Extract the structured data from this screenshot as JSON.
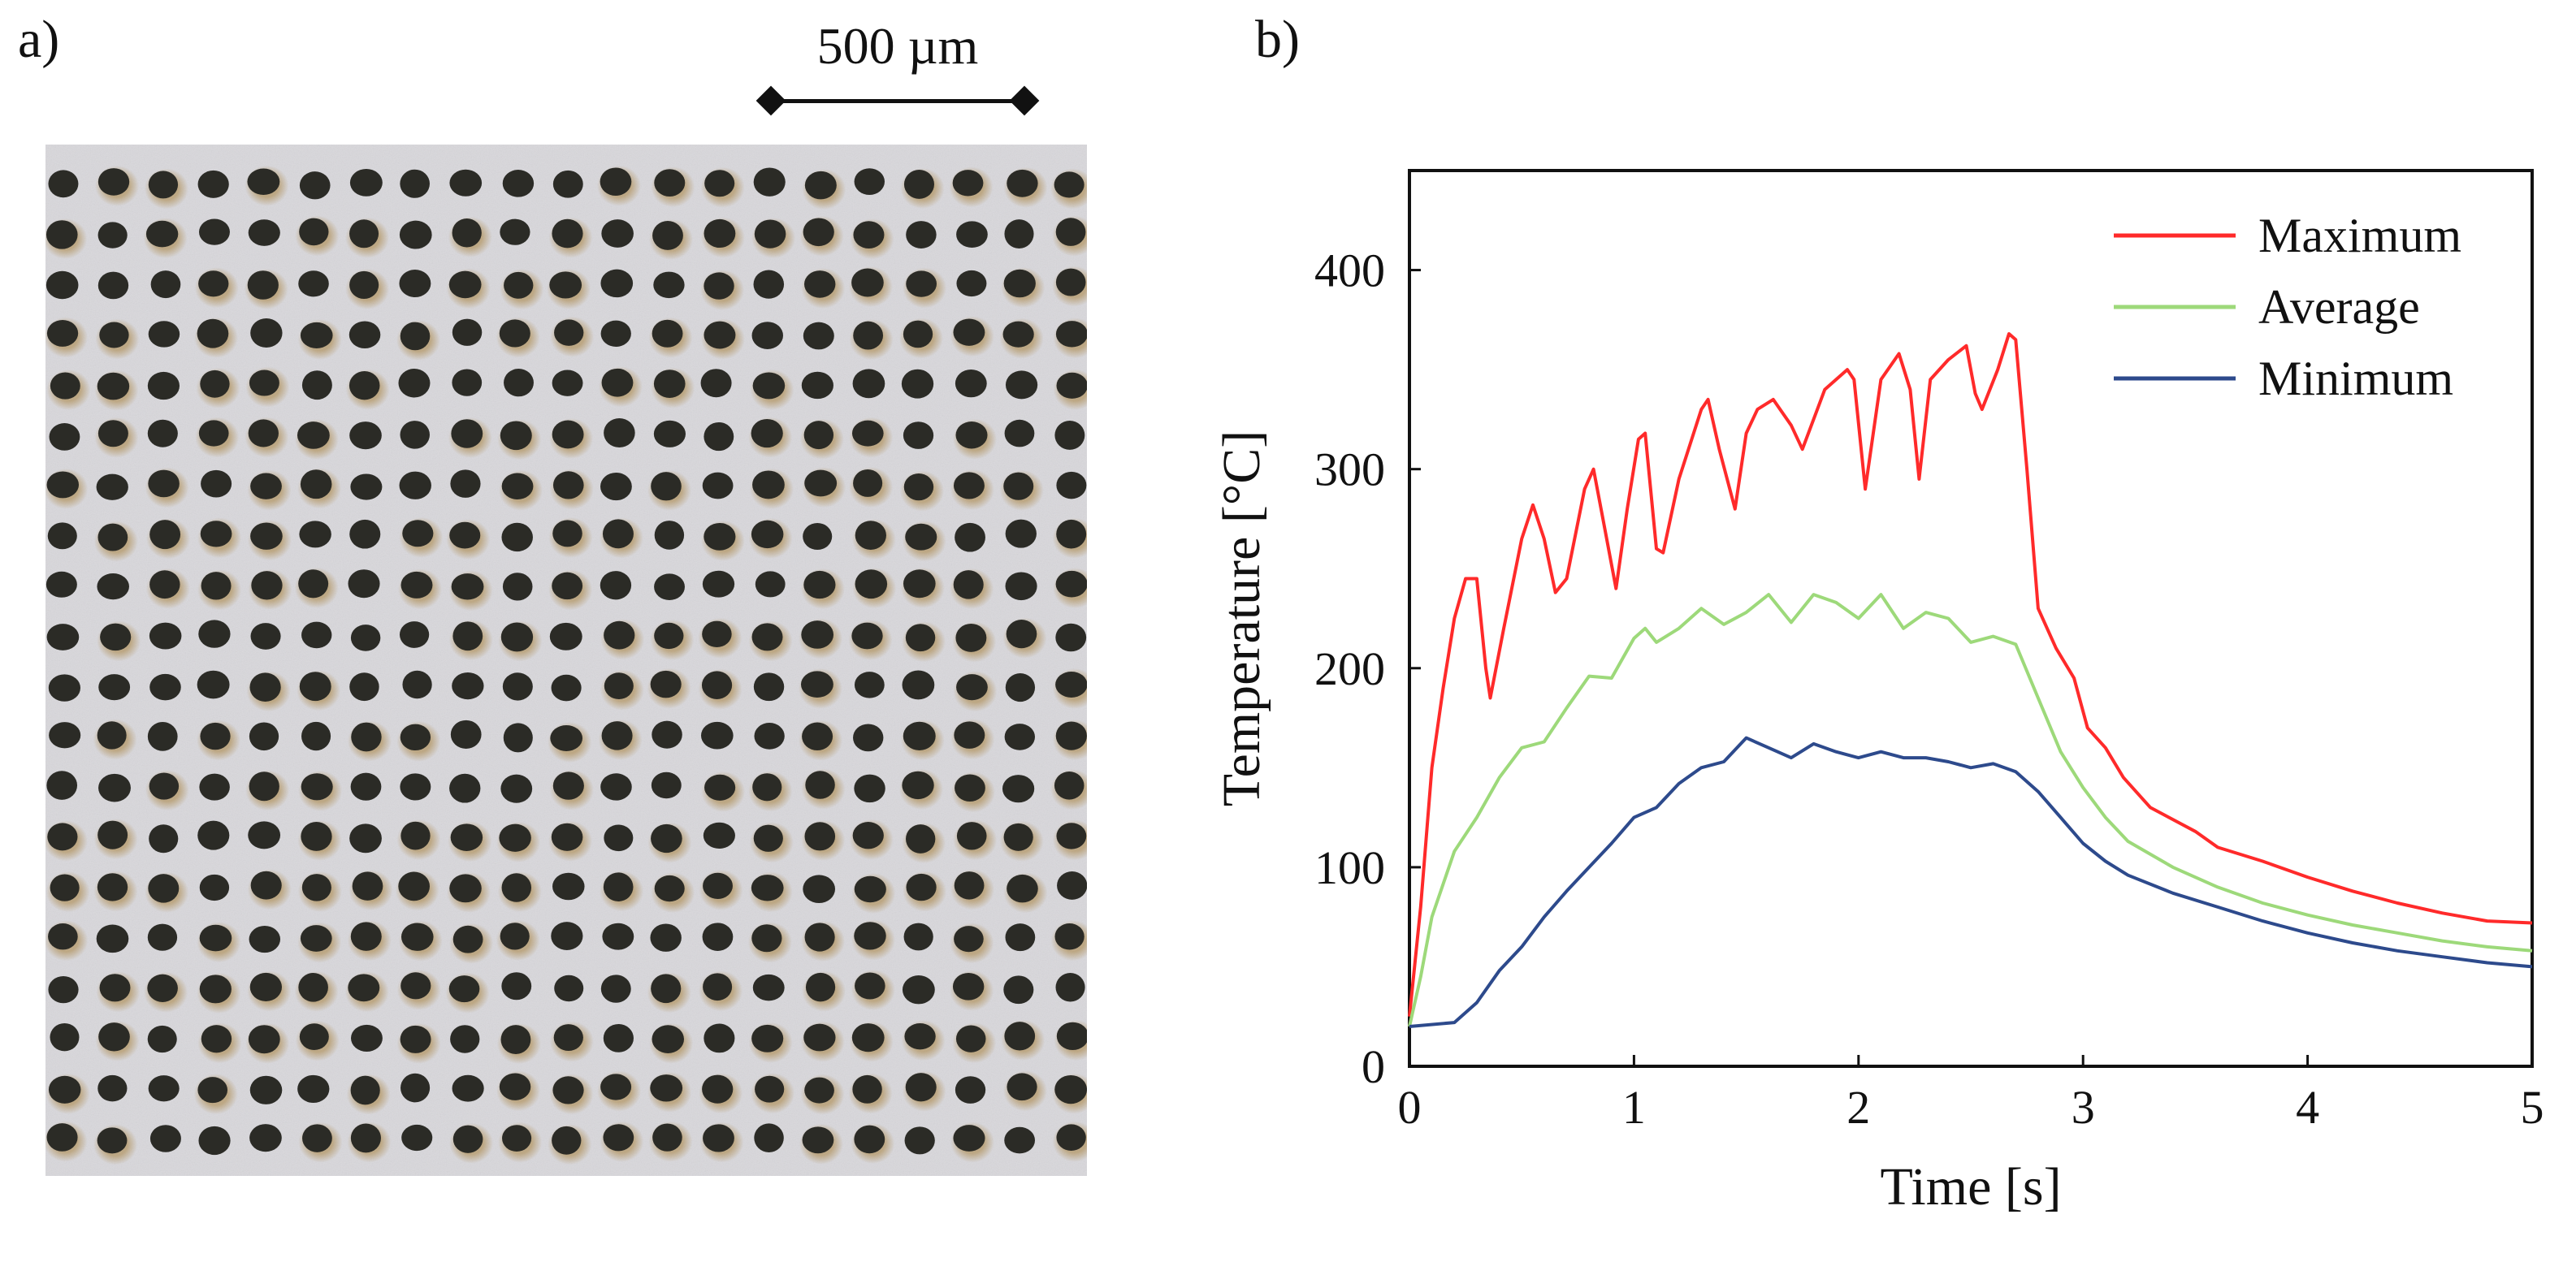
{
  "panels": {
    "a_label": "a)",
    "b_label": "b)"
  },
  "micrograph": {
    "scale_bar_label": "500 µm",
    "grid_rows": 20,
    "grid_cols": 21,
    "background_color": "#d9d8dc",
    "dot_color": "#2b2b26",
    "halo_color": "#a8823f"
  },
  "chart_data": {
    "type": "line",
    "title": "",
    "xlabel": "Time [s]",
    "ylabel": "Temperature [°C]",
    "xlim": [
      0,
      5
    ],
    "ylim": [
      0,
      450
    ],
    "xticks": [
      0,
      1,
      2,
      3,
      4,
      5
    ],
    "yticks": [
      0,
      100,
      200,
      300,
      400
    ],
    "grid": false,
    "legend_position": "top-right",
    "series": [
      {
        "name": "Maximum",
        "color": "#ff2a2a",
        "points": [
          [
            0,
            25
          ],
          [
            0.05,
            80
          ],
          [
            0.1,
            150
          ],
          [
            0.15,
            190
          ],
          [
            0.2,
            225
          ],
          [
            0.25,
            245
          ],
          [
            0.3,
            245
          ],
          [
            0.34,
            200
          ],
          [
            0.36,
            185
          ],
          [
            0.42,
            220
          ],
          [
            0.5,
            265
          ],
          [
            0.55,
            282
          ],
          [
            0.6,
            265
          ],
          [
            0.65,
            238
          ],
          [
            0.7,
            245
          ],
          [
            0.78,
            290
          ],
          [
            0.82,
            300
          ],
          [
            0.87,
            270
          ],
          [
            0.92,
            240
          ],
          [
            0.97,
            280
          ],
          [
            1.02,
            315
          ],
          [
            1.05,
            318
          ],
          [
            1.1,
            260
          ],
          [
            1.13,
            258
          ],
          [
            1.2,
            295
          ],
          [
            1.3,
            330
          ],
          [
            1.33,
            335
          ],
          [
            1.38,
            310
          ],
          [
            1.45,
            280
          ],
          [
            1.5,
            318
          ],
          [
            1.55,
            330
          ],
          [
            1.62,
            335
          ],
          [
            1.7,
            322
          ],
          [
            1.75,
            310
          ],
          [
            1.85,
            340
          ],
          [
            1.95,
            350
          ],
          [
            1.98,
            345
          ],
          [
            2.03,
            290
          ],
          [
            2.1,
            345
          ],
          [
            2.18,
            358
          ],
          [
            2.23,
            340
          ],
          [
            2.27,
            295
          ],
          [
            2.32,
            345
          ],
          [
            2.4,
            355
          ],
          [
            2.48,
            362
          ],
          [
            2.52,
            338
          ],
          [
            2.55,
            330
          ],
          [
            2.62,
            350
          ],
          [
            2.67,
            368
          ],
          [
            2.7,
            365
          ],
          [
            2.75,
            300
          ],
          [
            2.8,
            230
          ],
          [
            2.88,
            210
          ],
          [
            2.96,
            195
          ],
          [
            3.02,
            170
          ],
          [
            3.1,
            160
          ],
          [
            3.18,
            145
          ],
          [
            3.3,
            130
          ],
          [
            3.5,
            118
          ],
          [
            3.6,
            110
          ],
          [
            3.8,
            103
          ],
          [
            4.0,
            95
          ],
          [
            4.2,
            88
          ],
          [
            4.4,
            82
          ],
          [
            4.6,
            77
          ],
          [
            4.8,
            73
          ],
          [
            5.0,
            72
          ]
        ]
      },
      {
        "name": "Average",
        "color": "#9dd97a",
        "points": [
          [
            0,
            20
          ],
          [
            0.05,
            45
          ],
          [
            0.1,
            75
          ],
          [
            0.2,
            108
          ],
          [
            0.3,
            125
          ],
          [
            0.4,
            145
          ],
          [
            0.5,
            160
          ],
          [
            0.6,
            163
          ],
          [
            0.7,
            180
          ],
          [
            0.8,
            196
          ],
          [
            0.9,
            195
          ],
          [
            1.0,
            215
          ],
          [
            1.05,
            220
          ],
          [
            1.1,
            213
          ],
          [
            1.2,
            220
          ],
          [
            1.3,
            230
          ],
          [
            1.4,
            222
          ],
          [
            1.5,
            228
          ],
          [
            1.6,
            237
          ],
          [
            1.7,
            223
          ],
          [
            1.8,
            237
          ],
          [
            1.9,
            233
          ],
          [
            2.0,
            225
          ],
          [
            2.1,
            237
          ],
          [
            2.2,
            220
          ],
          [
            2.3,
            228
          ],
          [
            2.4,
            225
          ],
          [
            2.5,
            213
          ],
          [
            2.6,
            216
          ],
          [
            2.7,
            212
          ],
          [
            2.8,
            185
          ],
          [
            2.9,
            158
          ],
          [
            3.0,
            140
          ],
          [
            3.1,
            125
          ],
          [
            3.2,
            113
          ],
          [
            3.4,
            100
          ],
          [
            3.6,
            90
          ],
          [
            3.8,
            82
          ],
          [
            4.0,
            76
          ],
          [
            4.2,
            71
          ],
          [
            4.4,
            67
          ],
          [
            4.6,
            63
          ],
          [
            4.8,
            60
          ],
          [
            5.0,
            58
          ]
        ]
      },
      {
        "name": "Minimum",
        "color": "#2d4a8c",
        "points": [
          [
            0,
            20
          ],
          [
            0.2,
            22
          ],
          [
            0.3,
            32
          ],
          [
            0.4,
            48
          ],
          [
            0.5,
            60
          ],
          [
            0.6,
            75
          ],
          [
            0.7,
            88
          ],
          [
            0.8,
            100
          ],
          [
            0.9,
            112
          ],
          [
            1.0,
            125
          ],
          [
            1.1,
            130
          ],
          [
            1.2,
            142
          ],
          [
            1.3,
            150
          ],
          [
            1.4,
            153
          ],
          [
            1.5,
            165
          ],
          [
            1.6,
            160
          ],
          [
            1.7,
            155
          ],
          [
            1.8,
            162
          ],
          [
            1.9,
            158
          ],
          [
            2.0,
            155
          ],
          [
            2.1,
            158
          ],
          [
            2.2,
            155
          ],
          [
            2.3,
            155
          ],
          [
            2.4,
            153
          ],
          [
            2.5,
            150
          ],
          [
            2.6,
            152
          ],
          [
            2.7,
            148
          ],
          [
            2.8,
            138
          ],
          [
            2.9,
            125
          ],
          [
            3.0,
            112
          ],
          [
            3.1,
            103
          ],
          [
            3.2,
            96
          ],
          [
            3.4,
            87
          ],
          [
            3.6,
            80
          ],
          [
            3.8,
            73
          ],
          [
            4.0,
            67
          ],
          [
            4.2,
            62
          ],
          [
            4.4,
            58
          ],
          [
            4.6,
            55
          ],
          [
            4.8,
            52
          ],
          [
            5.0,
            50
          ]
        ]
      }
    ]
  }
}
